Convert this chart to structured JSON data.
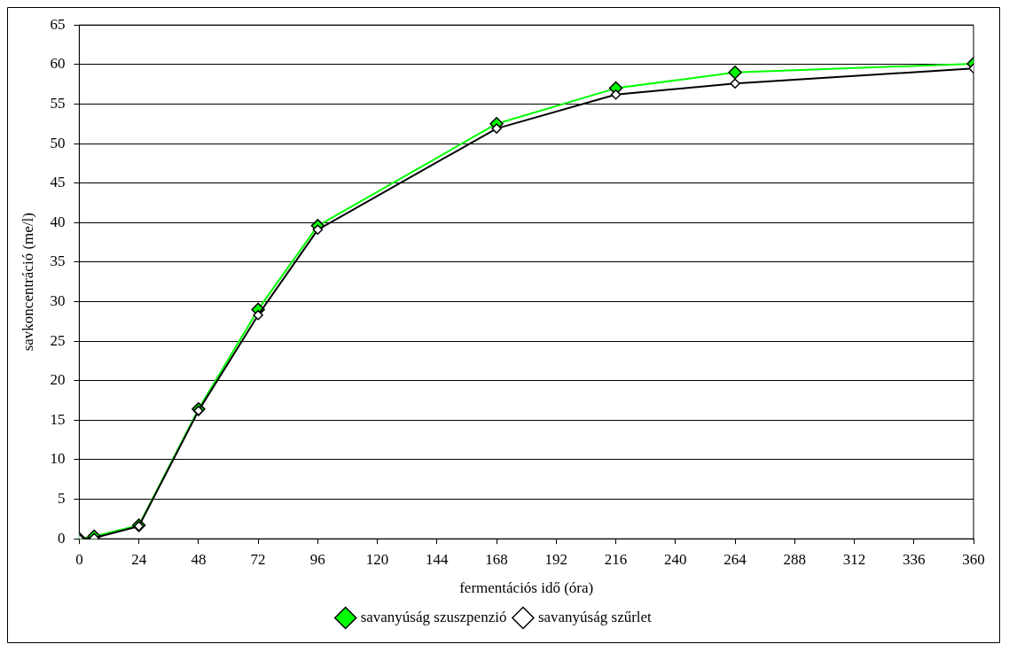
{
  "chart_data": {
    "type": "line",
    "xlabel": "fermentációs idő (óra)",
    "ylabel": "savkoncentráció (me/l)",
    "xlim": [
      0,
      360
    ],
    "xticks": [
      0,
      24,
      48,
      72,
      96,
      120,
      144,
      168,
      192,
      216,
      240,
      264,
      288,
      312,
      336,
      360
    ],
    "ylim": [
      0,
      65
    ],
    "yticks": [
      0,
      5,
      10,
      15,
      20,
      25,
      30,
      35,
      40,
      45,
      50,
      55,
      60,
      65
    ],
    "grid": "y",
    "legend": "bottom",
    "marker": "diamond",
    "line_style": "solid",
    "x": [
      0,
      6,
      24,
      48,
      72,
      96,
      168,
      216,
      264,
      360
    ],
    "series": [
      {
        "name": "savanyúság szuszpenzió",
        "color": "#00ff00",
        "values": [
          0,
          0.3,
          1.7,
          16.4,
          29.0,
          39.6,
          52.5,
          57.0,
          59.0,
          60.1
        ]
      },
      {
        "name": "savanyúság szűrlet",
        "color": "#000000",
        "values": [
          0,
          0.1,
          1.6,
          16.2,
          28.3,
          39.1,
          51.9,
          56.2,
          57.6,
          59.5
        ]
      }
    ]
  }
}
